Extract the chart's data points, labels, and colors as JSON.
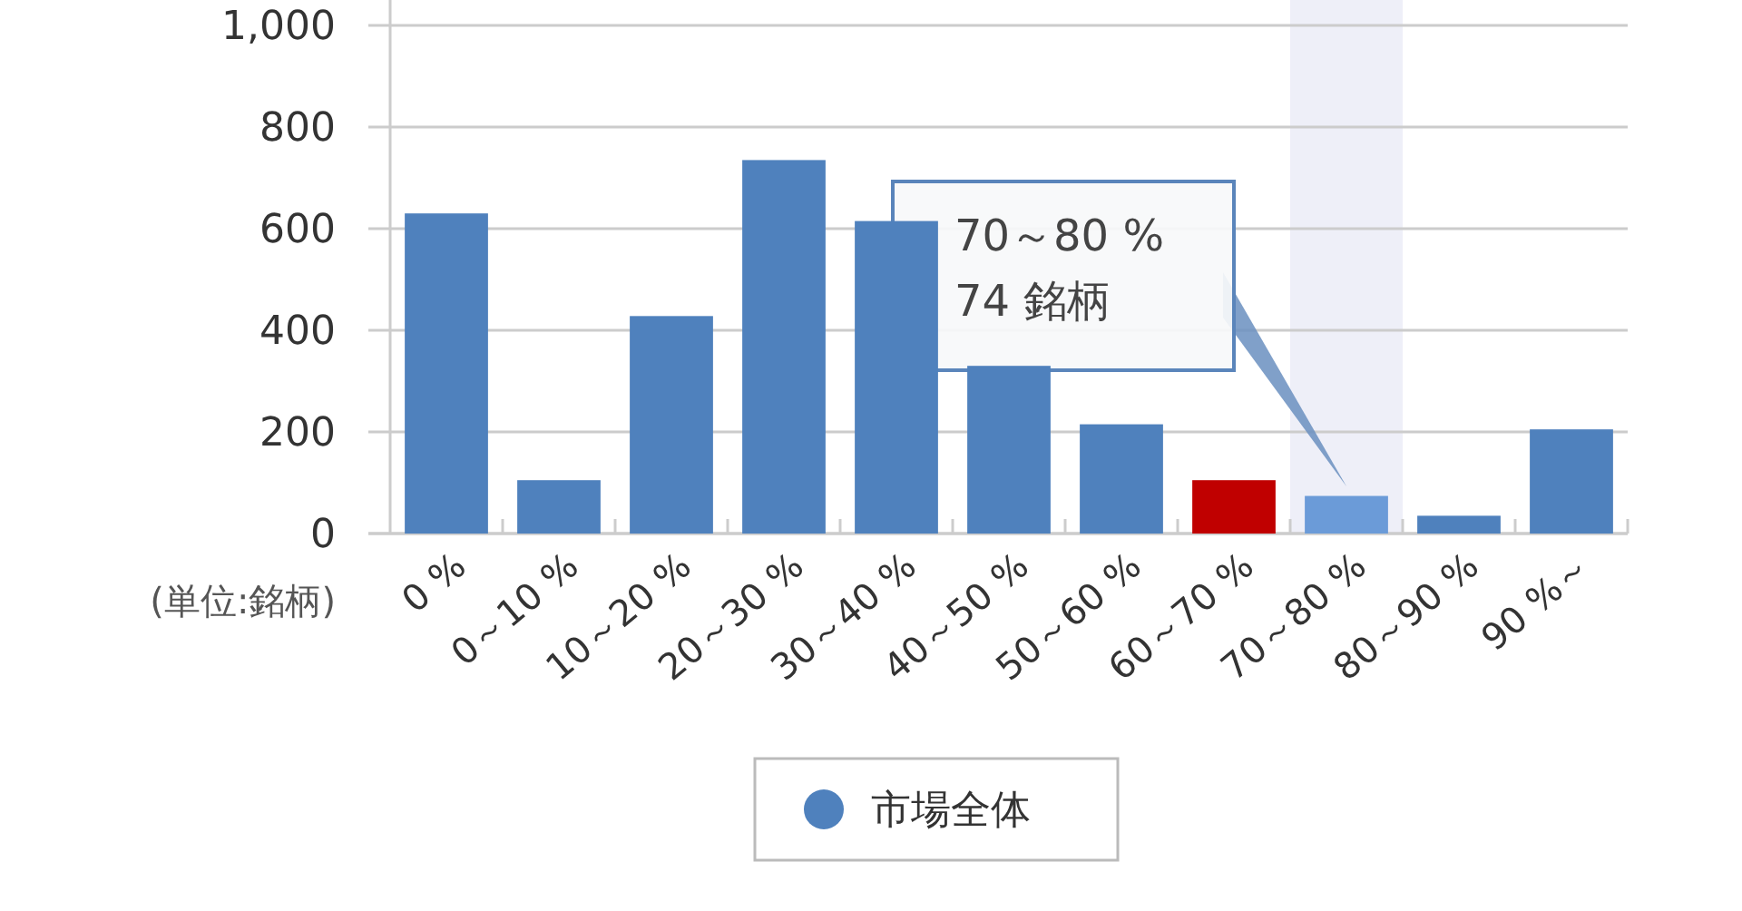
{
  "chart_data": {
    "type": "bar",
    "ylabel": "(単位:銘柄)",
    "categories": [
      "0 %",
      "0～10 %",
      "10～20 %",
      "20～30 %",
      "30～40 %",
      "40～50 %",
      "50～60 %",
      "60～70 %",
      "70～80 %",
      "80～90 %",
      "90 %～"
    ],
    "series": [
      {
        "name": "市場全体",
        "color": "#4f81bd",
        "colors": [
          "#4f81bd",
          "#4f81bd",
          "#4f81bd",
          "#4f81bd",
          "#4f81bd",
          "#4f81bd",
          "#4f81bd",
          "#c00000",
          "#6b9bd8",
          "#4f81bd",
          "#4f81bd"
        ],
        "values": [
          630,
          105,
          428,
          735,
          615,
          330,
          215,
          105,
          74,
          35,
          205
        ]
      }
    ],
    "ylim": [
      0,
      1000
    ],
    "yticks": [
      0,
      200,
      400,
      600,
      800,
      {
        "value": 1000,
        "label": "1,000"
      }
    ],
    "grid": "y",
    "legend": "bottom",
    "bands": [
      {
        "axis": "x",
        "from": "70～80 %",
        "to": "70～80 %",
        "color": "#eeeff8"
      }
    ],
    "annotations": [
      "70～80 %\n74 銘柄"
    ]
  }
}
